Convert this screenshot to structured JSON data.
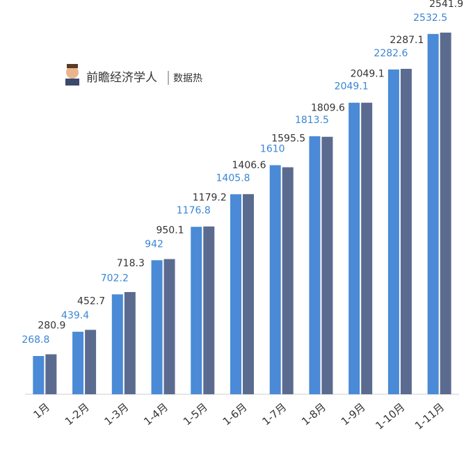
{
  "header": {
    "brand": "前瞻经济学人",
    "tag": "数据热"
  },
  "chart_data": {
    "type": "bar",
    "categories": [
      "1月",
      "1-2月",
      "1-3月",
      "1-4月",
      "1-5月",
      "1-6月",
      "1-7月",
      "1-8月",
      "1-9月",
      "1-10月",
      "1-11月"
    ],
    "series": [
      {
        "color": "#4a8ad6",
        "values": [
          268.8,
          439.4,
          702.2,
          942,
          1176.8,
          1405.8,
          1610,
          1813.5,
          2049.1,
          2282.6,
          2532.5
        ]
      },
      {
        "color": "#5b6b90",
        "values": [
          280.9,
          452.7,
          718.3,
          950.1,
          1179.2,
          1406.6,
          1595.5,
          1809.6,
          2049.1,
          2287.1,
          2541.9
        ]
      }
    ],
    "ylim": [
      0,
      2600
    ]
  }
}
